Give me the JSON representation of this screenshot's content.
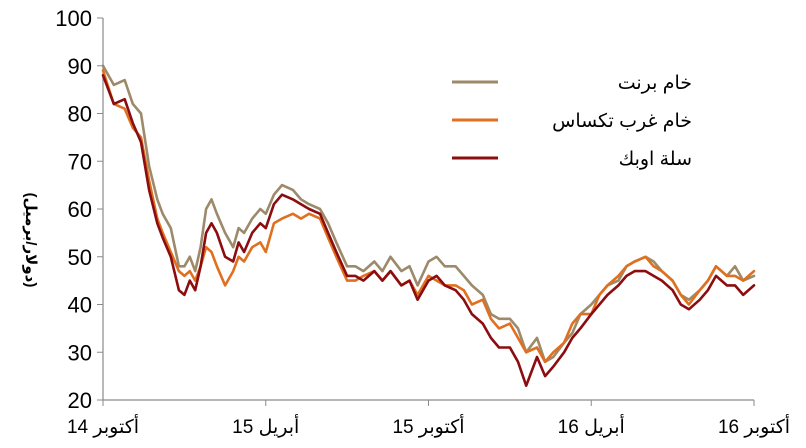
{
  "chart_data": {
    "type": "line",
    "title": "",
    "xlabel": "",
    "ylabel": "(دولار/برميل)",
    "ylim": [
      20,
      100
    ],
    "yticks": [
      20,
      30,
      40,
      50,
      60,
      70,
      80,
      90,
      100
    ],
    "xlim": [
      0,
      24
    ],
    "xticks": [
      {
        "x": 0,
        "label": "أكتوبر 14"
      },
      {
        "x": 6,
        "label": "أبريل 15"
      },
      {
        "x": 12,
        "label": "أكتوبر 15"
      },
      {
        "x": 18,
        "label": "أبريل 16"
      },
      {
        "x": 24,
        "label": "أكتوبر 16"
      }
    ],
    "grid": false,
    "legend_position": "top-right",
    "series": [
      {
        "name": "خام برنت",
        "color": "#9c8a6a",
        "x": [
          0,
          0.4,
          0.8,
          1.1,
          1.4,
          1.7,
          2.0,
          2.2,
          2.5,
          2.8,
          3.0,
          3.2,
          3.4,
          3.6,
          3.8,
          4.0,
          4.2,
          4.5,
          4.8,
          5.0,
          5.2,
          5.5,
          5.8,
          6.0,
          6.3,
          6.6,
          7.0,
          7.3,
          7.6,
          8.0,
          8.3,
          8.6,
          9.0,
          9.3,
          9.6,
          10.0,
          10.3,
          10.6,
          11.0,
          11.3,
          11.6,
          12.0,
          12.3,
          12.6,
          13.0,
          13.3,
          13.6,
          14.0,
          14.3,
          14.6,
          15.0,
          15.3,
          15.6,
          16.0,
          16.3,
          16.6,
          17.0,
          17.3,
          17.6,
          18.0,
          18.3,
          18.6,
          19.0,
          19.3,
          19.6,
          20.0,
          20.3,
          20.6,
          21.0,
          21.3,
          21.6,
          22.0,
          22.3,
          22.6,
          23.0,
          23.3,
          23.6,
          24.0
        ],
        "y": [
          90,
          86,
          87,
          82,
          80,
          69,
          62,
          59,
          56,
          48,
          48,
          50,
          47,
          52,
          60,
          62,
          59,
          55,
          52,
          56,
          55,
          58,
          60,
          59,
          63,
          65,
          64,
          62,
          61,
          60,
          57,
          53,
          48,
          48,
          47,
          49,
          47,
          50,
          47,
          48,
          44,
          49,
          50,
          48,
          48,
          46,
          44,
          42,
          38,
          37,
          37,
          35,
          30,
          33,
          28,
          29,
          32,
          34,
          38,
          40,
          42,
          44,
          45,
          48,
          49,
          50,
          49,
          47,
          45,
          42,
          41,
          43,
          45,
          48,
          46,
          48,
          45,
          46
        ]
      },
      {
        "name": "خام غرب تكساس",
        "color": "#e07020",
        "x": [
          0,
          0.4,
          0.8,
          1.1,
          1.4,
          1.7,
          2.0,
          2.2,
          2.5,
          2.8,
          3.0,
          3.2,
          3.4,
          3.6,
          3.8,
          4.0,
          4.2,
          4.5,
          4.8,
          5.0,
          5.2,
          5.5,
          5.8,
          6.0,
          6.3,
          6.6,
          7.0,
          7.3,
          7.6,
          8.0,
          8.3,
          8.6,
          9.0,
          9.3,
          9.6,
          10.0,
          10.3,
          10.6,
          11.0,
          11.3,
          11.6,
          12.0,
          12.3,
          12.6,
          13.0,
          13.3,
          13.6,
          14.0,
          14.3,
          14.6,
          15.0,
          15.3,
          15.6,
          16.0,
          16.3,
          16.6,
          17.0,
          17.3,
          17.6,
          18.0,
          18.3,
          18.6,
          19.0,
          19.3,
          19.6,
          20.0,
          20.3,
          20.6,
          21.0,
          21.3,
          21.6,
          22.0,
          22.3,
          22.6,
          23.0,
          23.3,
          23.6,
          24.0
        ],
        "y": [
          89,
          82,
          81,
          77,
          75,
          66,
          58,
          55,
          51,
          47,
          46,
          47,
          45,
          48,
          52,
          51,
          48,
          44,
          47,
          50,
          49,
          52,
          53,
          51,
          57,
          58,
          59,
          58,
          59,
          58,
          54,
          50,
          45,
          45,
          46,
          47,
          45,
          47,
          44,
          45,
          42,
          46,
          45,
          44,
          44,
          43,
          40,
          41,
          37,
          35,
          36,
          33,
          30,
          31,
          28,
          30,
          32,
          36,
          38,
          38,
          42,
          44,
          46,
          48,
          49,
          50,
          48,
          47,
          45,
          42,
          40,
          43,
          45,
          48,
          46,
          46,
          45,
          47
        ]
      },
      {
        "name": "سلة اوبك",
        "color": "#8b0d10",
        "x": [
          0,
          0.4,
          0.8,
          1.1,
          1.4,
          1.7,
          2.0,
          2.2,
          2.5,
          2.8,
          3.0,
          3.2,
          3.4,
          3.6,
          3.8,
          4.0,
          4.2,
          4.5,
          4.8,
          5.0,
          5.2,
          5.5,
          5.8,
          6.0,
          6.3,
          6.6,
          7.0,
          7.3,
          7.6,
          8.0,
          8.3,
          8.6,
          9.0,
          9.3,
          9.6,
          10.0,
          10.3,
          10.6,
          11.0,
          11.3,
          11.6,
          12.0,
          12.3,
          12.6,
          13.0,
          13.3,
          13.6,
          14.0,
          14.3,
          14.6,
          15.0,
          15.3,
          15.6,
          16.0,
          16.3,
          16.6,
          17.0,
          17.3,
          17.6,
          18.0,
          18.3,
          18.6,
          19.0,
          19.3,
          19.6,
          20.0,
          20.3,
          20.6,
          21.0,
          21.3,
          21.6,
          22.0,
          22.3,
          22.6,
          23.0,
          23.3,
          23.6,
          24.0
        ],
        "y": [
          88,
          82,
          83,
          78,
          74,
          64,
          57,
          54,
          50,
          43,
          42,
          45,
          43,
          48,
          55,
          57,
          55,
          50,
          49,
          53,
          51,
          55,
          57,
          56,
          61,
          63,
          62,
          61,
          60,
          59,
          55,
          51,
          46,
          46,
          45,
          47,
          45,
          47,
          44,
          45,
          41,
          45,
          46,
          44,
          43,
          41,
          38,
          36,
          33,
          31,
          31,
          28,
          23,
          29,
          25,
          27,
          30,
          33,
          35,
          38,
          40,
          42,
          44,
          46,
          47,
          47,
          46,
          45,
          43,
          40,
          39,
          41,
          43,
          46,
          44,
          44,
          42,
          44
        ]
      }
    ]
  }
}
